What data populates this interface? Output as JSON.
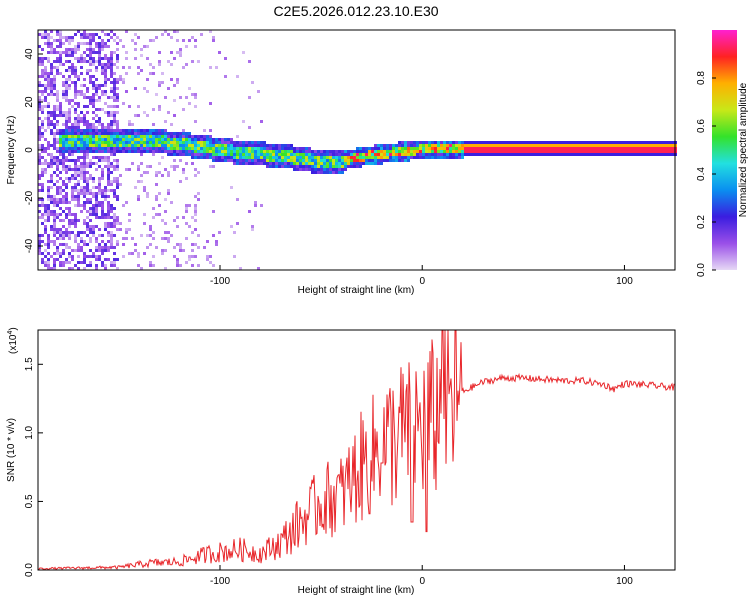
{
  "title": "C2E5.2026.012.23.10.E30",
  "chart_data": [
    {
      "type": "heatmap",
      "xlabel": "Height of straight line (km)",
      "ylabel": "Frequency (Hz)",
      "xlim": [
        -190,
        125
      ],
      "ylim": [
        -50,
        50
      ],
      "xticks": [
        -100,
        0,
        100
      ],
      "yticks": [
        -40,
        -20,
        0,
        20,
        40
      ],
      "grid": false,
      "ridge": [
        [
          -170,
          4
        ],
        [
          -150,
          5
        ],
        [
          -130,
          4
        ],
        [
          -110,
          2
        ],
        [
          -95,
          0
        ],
        [
          -80,
          -1
        ],
        [
          -70,
          -2
        ],
        [
          -60,
          -3
        ],
        [
          -50,
          -5
        ],
        [
          -40,
          -4
        ],
        [
          -30,
          -2
        ],
        [
          -20,
          -1
        ],
        [
          -10,
          0
        ],
        [
          0,
          1
        ],
        [
          20,
          1
        ],
        [
          40,
          1
        ],
        [
          60,
          1
        ],
        [
          80,
          1
        ],
        [
          100,
          1
        ],
        [
          125,
          1
        ]
      ],
      "colorbar": {
        "label": "Normalized spectral amplitude",
        "ticks": [
          "0.0",
          "0.2",
          "0.4",
          "0.6",
          "0.8"
        ],
        "range": [
          0,
          1
        ],
        "colors": [
          "#e6d8f5",
          "#9a4fe8",
          "#3a1de0",
          "#0a8ff0",
          "#22e0e0",
          "#34e22a",
          "#c8e818",
          "#ffb000",
          "#ff2222",
          "#ff20d0"
        ]
      }
    },
    {
      "type": "line",
      "xlabel": "Height of straight line (km)",
      "ylabel": "SNR (10 * v/v)",
      "multiplier": "(x10",
      "multiplier_exp": "4",
      "xlim": [
        -190,
        125
      ],
      "ylim": [
        0,
        1.75
      ],
      "xticks": [
        -100,
        0,
        100
      ],
      "yticks": [
        "0.0",
        "0.5",
        "1.0",
        "1.5"
      ],
      "grid": false,
      "color": "#e8262a",
      "envelope": [
        [
          -190,
          0.01
        ],
        [
          -150,
          0.02
        ],
        [
          -135,
          0.05
        ],
        [
          -120,
          0.06
        ],
        [
          -105,
          0.12
        ],
        [
          -90,
          0.15
        ],
        [
          -80,
          0.12
        ],
        [
          -70,
          0.2
        ],
        [
          -60,
          0.35
        ],
        [
          -50,
          0.5
        ],
        [
          -40,
          0.55
        ],
        [
          -30,
          0.75
        ],
        [
          -20,
          0.9
        ],
        [
          -10,
          1.0
        ],
        [
          0,
          1.05
        ],
        [
          10,
          1.15
        ],
        [
          20,
          1.3
        ],
        [
          30,
          1.37
        ],
        [
          40,
          1.4
        ],
        [
          50,
          1.4
        ],
        [
          60,
          1.39
        ],
        [
          70,
          1.38
        ],
        [
          80,
          1.38
        ],
        [
          90,
          1.35
        ],
        [
          95,
          1.32
        ],
        [
          100,
          1.36
        ],
        [
          110,
          1.35
        ],
        [
          125,
          1.33
        ]
      ],
      "spikes": [
        [
          10,
          1.75
        ],
        [
          2,
          0.28
        ],
        [
          -5,
          0.35
        ],
        [
          -20,
          0.78
        ]
      ]
    }
  ]
}
